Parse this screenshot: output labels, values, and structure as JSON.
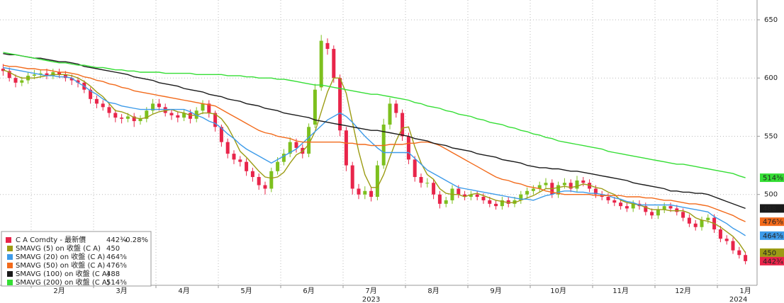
{
  "chart_data": {
    "type": "candlestick",
    "categories": [
      null,
      null,
      null,
      null,
      null,
      null,
      null,
      null,
      null,
      "2月",
      null,
      null,
      null,
      null,
      null,
      null,
      null,
      null,
      null,
      "3月",
      null,
      null,
      null,
      null,
      null,
      null,
      null,
      null,
      null,
      "4月",
      null,
      null,
      null,
      null,
      null,
      null,
      null,
      null,
      null,
      "5月",
      null,
      null,
      null,
      null,
      null,
      null,
      null,
      null,
      null,
      "6月",
      null,
      null,
      null,
      null,
      null,
      null,
      null,
      null,
      null,
      "7月",
      null,
      null,
      null,
      null,
      null,
      null,
      null,
      null,
      null,
      "8月",
      null,
      null,
      null,
      null,
      null,
      null,
      null,
      null,
      null,
      "9月",
      null,
      null,
      null,
      null,
      null,
      null,
      null,
      null,
      null,
      "10月",
      null,
      null,
      null,
      null,
      null,
      null,
      null,
      null,
      null,
      "11月",
      null,
      null,
      null,
      null,
      null,
      null,
      null,
      null,
      null,
      "12月",
      null,
      null,
      null,
      null,
      null,
      null,
      null,
      null,
      null,
      "1月"
    ],
    "years": [
      {
        "label": "2023",
        "under": "7月"
      },
      {
        "label": "2024",
        "under": "1月"
      }
    ],
    "ohlc": {
      "name": "C A Comdty - 最新價",
      "up_color": "#7dc01e",
      "down_color": "#e8254a",
      "last_label": "442¾",
      "change": "-0.28%",
      "open": [
        608,
        606,
        600,
        596,
        598,
        602,
        603,
        604,
        602,
        605,
        603,
        600,
        598,
        596,
        590,
        582,
        578,
        575,
        570,
        566,
        565,
        567,
        563,
        565,
        572,
        578,
        575,
        570,
        568,
        566,
        570,
        565,
        572,
        578,
        570,
        558,
        545,
        535,
        530,
        528,
        520,
        515,
        508,
        505,
        520,
        528,
        535,
        545,
        540,
        535,
        560,
        592,
        630,
        625,
        600,
        555,
        525,
        505,
        500,
        503,
        498,
        525,
        560,
        578,
        570,
        550,
        530,
        515,
        510,
        510,
        500,
        492,
        495,
        505,
        500,
        498,
        500,
        498,
        495,
        492,
        490,
        495,
        492,
        495,
        500,
        503,
        505,
        508,
        510,
        500,
        508,
        510,
        505,
        512,
        510,
        505,
        500,
        498,
        495,
        493,
        490,
        488,
        492,
        490,
        485,
        482,
        487,
        490,
        488,
        485,
        480,
        475,
        472,
        478,
        480,
        470,
        462,
        460,
        452,
        448
      ],
      "high": [
        612,
        609,
        603,
        601,
        605,
        607,
        607,
        608,
        608,
        608,
        606,
        603,
        601,
        598,
        592,
        585,
        581,
        578,
        573,
        569,
        570,
        570,
        568,
        575,
        582,
        582,
        578,
        573,
        571,
        573,
        573,
        575,
        581,
        581,
        572,
        560,
        548,
        538,
        533,
        531,
        523,
        518,
        511,
        523,
        532,
        539,
        549,
        548,
        543,
        561,
        595,
        637,
        634,
        628,
        603,
        558,
        528,
        509,
        507,
        506,
        529,
        565,
        583,
        581,
        573,
        553,
        533,
        518,
        514,
        513,
        503,
        498,
        508,
        508,
        503,
        503,
        503,
        501,
        498,
        495,
        498,
        498,
        498,
        503,
        506,
        508,
        511,
        514,
        513,
        511,
        514,
        513,
        516,
        515,
        513,
        508,
        503,
        501,
        498,
        496,
        493,
        495,
        495,
        493,
        488,
        490,
        493,
        493,
        491,
        488,
        483,
        478,
        481,
        483,
        483,
        473,
        465,
        463,
        455,
        451
      ],
      "low": [
        602,
        597,
        592,
        593,
        595,
        599,
        600,
        599,
        599,
        600,
        597,
        594,
        592,
        587,
        578,
        574,
        572,
        566,
        562,
        561,
        562,
        558,
        560,
        562,
        569,
        572,
        567,
        564,
        562,
        563,
        561,
        562,
        569,
        566,
        554,
        541,
        531,
        526,
        524,
        516,
        511,
        504,
        500,
        502,
        517,
        525,
        532,
        536,
        531,
        532,
        557,
        589,
        620,
        596,
        550,
        520,
        500,
        496,
        496,
        494,
        495,
        522,
        556,
        566,
        546,
        526,
        511,
        506,
        506,
        496,
        488,
        489,
        492,
        497,
        495,
        495,
        495,
        492,
        489,
        487,
        487,
        489,
        489,
        492,
        497,
        500,
        502,
        505,
        497,
        497,
        505,
        502,
        502,
        507,
        502,
        497,
        495,
        492,
        490,
        487,
        485,
        485,
        487,
        482,
        479,
        479,
        484,
        485,
        482,
        477,
        472,
        469,
        469,
        475,
        467,
        459,
        457,
        449,
        445,
        440
      ],
      "close": [
        606,
        600,
        596,
        598,
        602,
        603,
        604,
        602,
        605,
        603,
        600,
        598,
        596,
        590,
        582,
        578,
        575,
        570,
        566,
        565,
        567,
        563,
        565,
        572,
        578,
        575,
        570,
        568,
        566,
        570,
        565,
        572,
        578,
        570,
        558,
        545,
        535,
        530,
        528,
        520,
        515,
        508,
        505,
        520,
        528,
        535,
        545,
        540,
        535,
        558,
        590,
        632,
        625,
        600,
        555,
        525,
        505,
        500,
        503,
        498,
        525,
        560,
        578,
        570,
        550,
        530,
        515,
        510,
        510,
        500,
        492,
        495,
        505,
        500,
        498,
        500,
        498,
        495,
        492,
        490,
        495,
        492,
        495,
        500,
        503,
        505,
        508,
        510,
        500,
        508,
        510,
        505,
        512,
        510,
        505,
        500,
        498,
        495,
        493,
        490,
        488,
        492,
        490,
        485,
        482,
        487,
        490,
        488,
        485,
        480,
        475,
        472,
        478,
        480,
        470,
        462,
        460,
        452,
        448,
        442.75
      ]
    },
    "lines": [
      {
        "name": "SMAVG (5)  on 收盤 (C A)",
        "color": "#9c9c14",
        "values": [
          607,
          605,
          602,
          600,
          600,
          600,
          601,
          602,
          603,
          603,
          603,
          602,
          600,
          597,
          593,
          588,
          584,
          578,
          572,
          571,
          569,
          566,
          565,
          566,
          569,
          571,
          572,
          573,
          571,
          570,
          568,
          568,
          570,
          570,
          569,
          565,
          558,
          548,
          537,
          532,
          526,
          520,
          515,
          514,
          515,
          519,
          527,
          534,
          537,
          543,
          554,
          571,
          588,
          600,
          600,
          587,
          562,
          537,
          517,
          506,
          506,
          517,
          532,
          546,
          557,
          558,
          541,
          527,
          517,
          513,
          505,
          501,
          500,
          500,
          498,
          500,
          501,
          499,
          497,
          495,
          494,
          493,
          493,
          495,
          497,
          499,
          502,
          505,
          505,
          506,
          507,
          506,
          507,
          509,
          508,
          506,
          505,
          502,
          500,
          495,
          493,
          492,
          491,
          489,
          487,
          487,
          487,
          486,
          486,
          486,
          484,
          480,
          478,
          477,
          475,
          472,
          468,
          464,
          458,
          450
        ]
      },
      {
        "name": "SMAVG (20) on 收盤 (C A)",
        "color": "#3d9be9",
        "last_label": "464⅝",
        "values": [
          609,
          608,
          607,
          606,
          605,
          604,
          603,
          602,
          602,
          601,
          601,
          600,
          596,
          593,
          589,
          586,
          582,
          579,
          578,
          576,
          575,
          574,
          573,
          573,
          573,
          573,
          573,
          573,
          573,
          573,
          571,
          568,
          566,
          563,
          561,
          557,
          552,
          548,
          543,
          539,
          536,
          533,
          530,
          527,
          530,
          533,
          536,
          539,
          544,
          549,
          554,
          559,
          564,
          567,
          570,
          567,
          562,
          556,
          550,
          545,
          540,
          536,
          536,
          536,
          536,
          536,
          531,
          526,
          521,
          518,
          515,
          512,
          509,
          506,
          505,
          504,
          503,
          502,
          501,
          500,
          499,
          498,
          497,
          496,
          496,
          495,
          497,
          499,
          500,
          502,
          503,
          503,
          502,
          502,
          501,
          501,
          500,
          499,
          497,
          496,
          494,
          493,
          491,
          491,
          491,
          491,
          491,
          491,
          490,
          489,
          488,
          487,
          486,
          485,
          481,
          478,
          475,
          471,
          468,
          464.625
        ]
      },
      {
        "name": "SMAVG (50) on 收盤 (C A)",
        "color": "#f26a1b",
        "last_label": "476⅝",
        "values": [
          611,
          610,
          610,
          609,
          608,
          608,
          607,
          607,
          606,
          605,
          605,
          604,
          603,
          601,
          600,
          598,
          597,
          595,
          594,
          592,
          591,
          589,
          588,
          587,
          586,
          585,
          584,
          583,
          582,
          581,
          580,
          579,
          578,
          577,
          576,
          573,
          570,
          567,
          564,
          561,
          558,
          555,
          553,
          552,
          550,
          549,
          548,
          546,
          545,
          545,
          545,
          545,
          545,
          545,
          545,
          544,
          544,
          543,
          543,
          542,
          542,
          542,
          543,
          543,
          543,
          544,
          544,
          545,
          545,
          544,
          542,
          539,
          536,
          533,
          530,
          527,
          524,
          521,
          518,
          515,
          513,
          512,
          510,
          509,
          507,
          506,
          505,
          503,
          502,
          501,
          500,
          500,
          500,
          500,
          500,
          499,
          499,
          499,
          499,
          499,
          498,
          498,
          498,
          497,
          497,
          496,
          495,
          495,
          494,
          493,
          492,
          492,
          491,
          490,
          488,
          486,
          484,
          482,
          479,
          476.625
        ]
      },
      {
        "name": "SMAVG (100) on 收盤 (C A)",
        "color": "#1a1a1a",
        "values": [
          621,
          620,
          620,
          619,
          618,
          617,
          617,
          616,
          615,
          614,
          614,
          613,
          612,
          610,
          609,
          608,
          607,
          606,
          605,
          604,
          603,
          601,
          600,
          599,
          598,
          596,
          595,
          594,
          593,
          591,
          590,
          589,
          588,
          586,
          585,
          584,
          582,
          581,
          580,
          578,
          577,
          576,
          574,
          573,
          572,
          570,
          569,
          568,
          567,
          566,
          564,
          563,
          562,
          561,
          560,
          559,
          558,
          557,
          556,
          555,
          555,
          554,
          553,
          552,
          551,
          550,
          548,
          547,
          546,
          544,
          543,
          542,
          540,
          539,
          538,
          537,
          535,
          534,
          533,
          532,
          530,
          529,
          528,
          527,
          525,
          524,
          523,
          523,
          522,
          522,
          521,
          520,
          520,
          519,
          518,
          517,
          516,
          515,
          514,
          513,
          512,
          510,
          509,
          508,
          507,
          506,
          505,
          503,
          503,
          502,
          502,
          501,
          501,
          500,
          498,
          496,
          494,
          492,
          490,
          488
        ]
      },
      {
        "name": "SMAVG (200) on 收盤 (C A)",
        "color": "#35de35",
        "last_label": "514⅜",
        "values": [
          622,
          621,
          620,
          619,
          618,
          617,
          616,
          615,
          614,
          613,
          613,
          612,
          611,
          611,
          610,
          609,
          609,
          608,
          607,
          607,
          606,
          606,
          605,
          605,
          605,
          605,
          604,
          604,
          604,
          604,
          604,
          603,
          603,
          603,
          603,
          603,
          602,
          602,
          602,
          601,
          601,
          600,
          600,
          600,
          599,
          599,
          598,
          597,
          596,
          595,
          594,
          594,
          593,
          592,
          591,
          590,
          589,
          588,
          587,
          586,
          586,
          585,
          584,
          583,
          582,
          581,
          579,
          578,
          576,
          575,
          574,
          572,
          571,
          569,
          568,
          567,
          565,
          564,
          562,
          561,
          560,
          558,
          557,
          555,
          554,
          552,
          551,
          549,
          548,
          546,
          545,
          544,
          543,
          542,
          541,
          540,
          539,
          537,
          536,
          535,
          534,
          533,
          532,
          531,
          530,
          529,
          528,
          527,
          526,
          526,
          525,
          524,
          523,
          522,
          521,
          520,
          519,
          518,
          516,
          514.375
        ]
      }
    ],
    "ylim": [
      422,
      667
    ],
    "yticks": [
      500,
      550,
      600,
      650
    ],
    "grid": true
  }
}
